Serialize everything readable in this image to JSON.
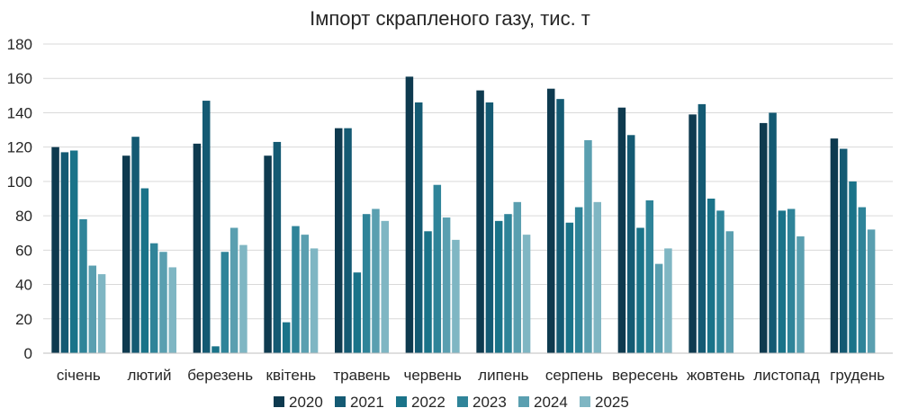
{
  "chart_data": {
    "type": "bar",
    "title": "Імпорт скрапленого газу, тис. т",
    "xlabel": "",
    "ylabel": "",
    "ylim": [
      0,
      180
    ],
    "yticks": [
      0,
      20,
      40,
      60,
      80,
      100,
      120,
      140,
      160,
      180
    ],
    "grid": true,
    "legend_position": "bottom",
    "categories": [
      "січень",
      "лютий",
      "березень",
      "квітень",
      "травень",
      "червень",
      "липень",
      "серпень",
      "вересень",
      "жовтень",
      "листопад",
      "грудень"
    ],
    "series": [
      {
        "name": "2020",
        "color": "#0e3a4f",
        "values": [
          120,
          115,
          122,
          115,
          131,
          161,
          153,
          154,
          143,
          139,
          134,
          125
        ]
      },
      {
        "name": "2021",
        "color": "#145a73",
        "values": [
          117,
          126,
          147,
          123,
          131,
          146,
          146,
          148,
          127,
          145,
          140,
          119
        ]
      },
      {
        "name": "2022",
        "color": "#1a7389",
        "values": [
          118,
          96,
          4,
          18,
          47,
          71,
          77,
          76,
          73,
          90,
          83,
          100
        ]
      },
      {
        "name": "2023",
        "color": "#2f8499",
        "values": [
          78,
          64,
          59,
          74,
          81,
          98,
          81,
          85,
          89,
          83,
          84,
          85
        ]
      },
      {
        "name": "2024",
        "color": "#5a9fb0",
        "values": [
          51,
          59,
          73,
          69,
          84,
          79,
          88,
          124,
          52,
          71,
          68,
          72
        ]
      },
      {
        "name": "2025",
        "color": "#7fb6c3",
        "values": [
          46,
          50,
          63,
          61,
          77,
          66,
          69,
          88,
          61,
          null,
          null,
          null
        ]
      }
    ]
  }
}
